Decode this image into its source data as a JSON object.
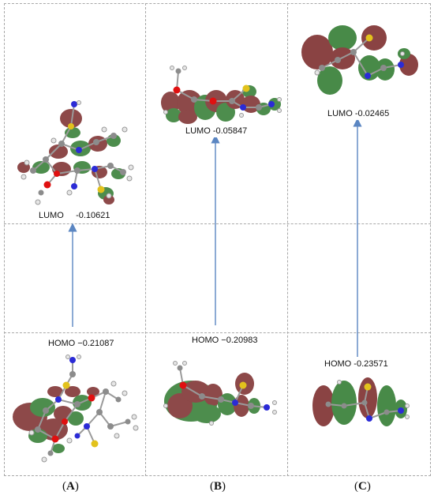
{
  "panels": [
    {
      "id": "A",
      "label_open": "(",
      "label_letter": "A",
      "label_close": ")",
      "lumo": {
        "label": "LUMO",
        "value": "-0.10621"
      },
      "homo": {
        "label": "HOMO",
        "value": "−0.21087"
      }
    },
    {
      "id": "B",
      "label_open": "(",
      "label_letter": "B",
      "label_close": ")",
      "lumo": {
        "label": "LUMO",
        "value": "-0.05847"
      },
      "homo": {
        "label": "HOMO",
        "value": "−0.20983"
      }
    },
    {
      "id": "C",
      "label_open": "(",
      "label_letter": "C",
      "label_close": ")",
      "lumo": {
        "label": "LUMO",
        "value": "-0.02465"
      },
      "homo": {
        "label": "HOMO",
        "value": "-0.23571"
      }
    }
  ],
  "colors": {
    "lobe_red": "#7a2a2a",
    "lobe_green": "#2f7a2f",
    "arrow": "#5b86c2",
    "carbon": "#8c8c8c",
    "hydrogen": "#e6e6e6",
    "nitrogen": "#2b2bd6",
    "oxygen": "#e01010",
    "sulfur": "#e2c21c"
  }
}
